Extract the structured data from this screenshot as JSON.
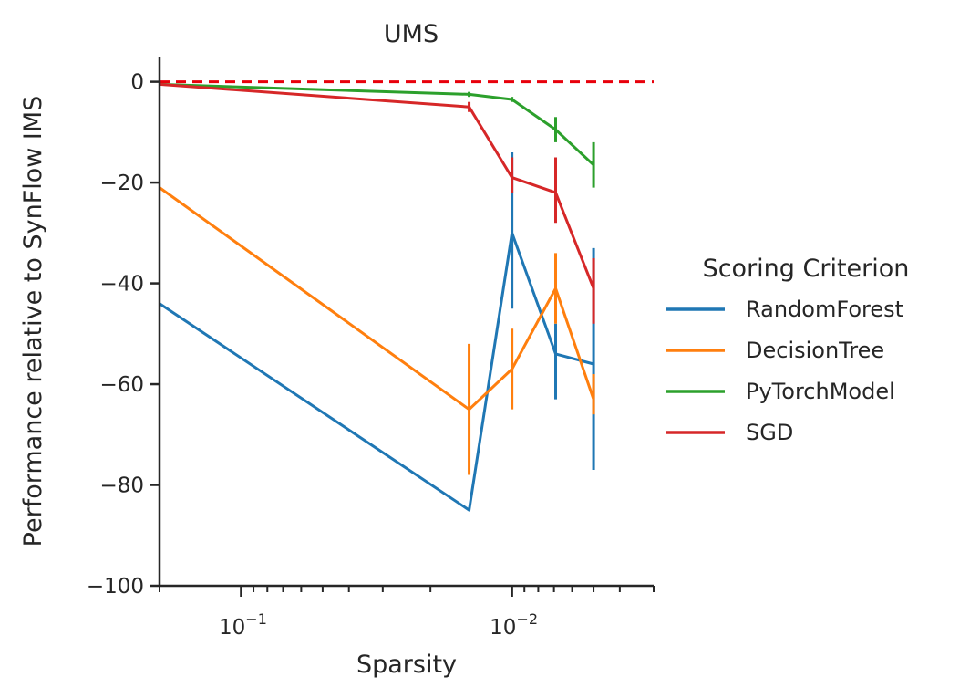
{
  "chart_data": {
    "type": "line",
    "title": "UMS",
    "xlabel": "Sparsity",
    "ylabel": "Performance relative to SynFlow IMS",
    "x_scale": "log",
    "x_reversed": true,
    "xlim": [
      0.2,
      0.003
    ],
    "ylim": [
      -100,
      5
    ],
    "x_major_ticks": [
      {
        "value": 0.1,
        "label": "10",
        "exp": "−1"
      },
      {
        "value": 0.01,
        "label": "10",
        "exp": "−2"
      }
    ],
    "y_ticks": [
      {
        "value": 0,
        "label": "0"
      },
      {
        "value": -20,
        "label": "−20"
      },
      {
        "value": -40,
        "label": "−40"
      },
      {
        "value": -60,
        "label": "−60"
      },
      {
        "value": -80,
        "label": "−80"
      },
      {
        "value": -100,
        "label": "−100"
      }
    ],
    "reference_line": {
      "y": 0,
      "color": "#e8000b",
      "style": "dashed"
    },
    "legend": {
      "title": "Scoring Criterion",
      "position": "right"
    },
    "series": [
      {
        "name": "RandomForest",
        "color": "#1f77b4",
        "points": [
          {
            "x": 0.2,
            "y": -44,
            "lo": null,
            "hi": null
          },
          {
            "x": 0.0144,
            "y": -85,
            "lo": null,
            "hi": null
          },
          {
            "x": 0.01,
            "y": -30,
            "lo": -45,
            "hi": -14
          },
          {
            "x": 0.0069,
            "y": -54,
            "lo": -63,
            "hi": -48
          },
          {
            "x": 0.005,
            "y": -56,
            "lo": -77,
            "hi": -33
          }
        ]
      },
      {
        "name": "DecisionTree",
        "color": "#ff7f0e",
        "points": [
          {
            "x": 0.2,
            "y": -21,
            "lo": null,
            "hi": null
          },
          {
            "x": 0.0144,
            "y": -65,
            "lo": -78,
            "hi": -52
          },
          {
            "x": 0.01,
            "y": -57,
            "lo": -65,
            "hi": -49
          },
          {
            "x": 0.0069,
            "y": -41,
            "lo": -48,
            "hi": -34
          },
          {
            "x": 0.005,
            "y": -63,
            "lo": -66,
            "hi": -58
          }
        ]
      },
      {
        "name": "PyTorchModel",
        "color": "#2ca02c",
        "points": [
          {
            "x": 0.2,
            "y": -0.5,
            "lo": null,
            "hi": null
          },
          {
            "x": 0.0144,
            "y": -2.5,
            "lo": -3,
            "hi": -2
          },
          {
            "x": 0.01,
            "y": -3.5,
            "lo": -4,
            "hi": -3
          },
          {
            "x": 0.0069,
            "y": -9.5,
            "lo": -12,
            "hi": -7
          },
          {
            "x": 0.005,
            "y": -16.5,
            "lo": -21,
            "hi": -12
          }
        ]
      },
      {
        "name": "SGD",
        "color": "#d62728",
        "points": [
          {
            "x": 0.2,
            "y": -0.5,
            "lo": null,
            "hi": null
          },
          {
            "x": 0.0144,
            "y": -5,
            "lo": -6,
            "hi": -4
          },
          {
            "x": 0.01,
            "y": -19,
            "lo": -22,
            "hi": -15
          },
          {
            "x": 0.0069,
            "y": -22,
            "lo": -28,
            "hi": -15
          },
          {
            "x": 0.005,
            "y": -41,
            "lo": -48,
            "hi": -35
          }
        ]
      }
    ]
  }
}
